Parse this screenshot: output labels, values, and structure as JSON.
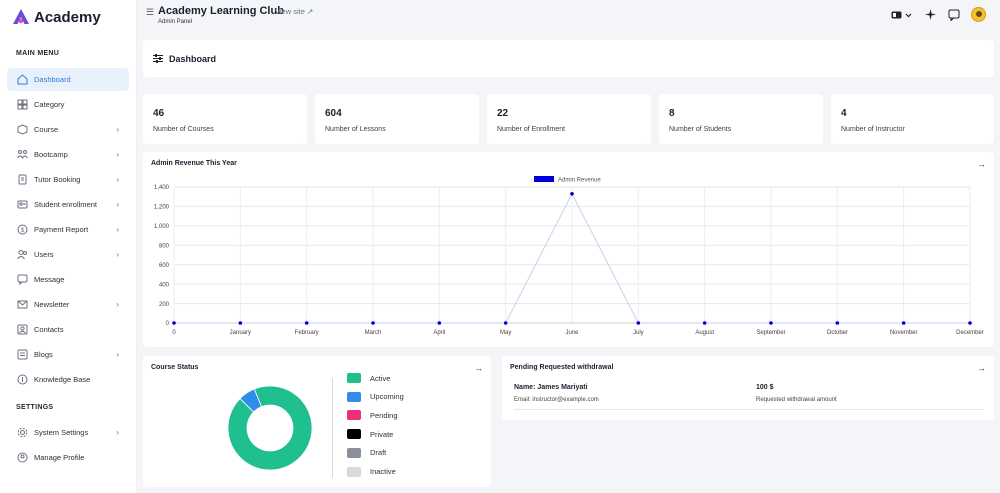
{
  "brand": {
    "name": "Academy",
    "accent": "#6c4bd8"
  },
  "header": {
    "title": "Academy Learning Club",
    "view_site": "View site",
    "subtitle": "Admin Panel"
  },
  "sidebar": {
    "main_heading": "MAIN MENU",
    "settings_heading": "SETTINGS",
    "items": [
      {
        "label": "Dashboard",
        "icon": "home-icon",
        "active": true,
        "chevron": false
      },
      {
        "label": "Category",
        "icon": "category-icon",
        "chevron": false
      },
      {
        "label": "Course",
        "icon": "course-icon",
        "chevron": true
      },
      {
        "label": "Bootcamp",
        "icon": "bootcamp-icon",
        "chevron": true
      },
      {
        "label": "Tutor Booking",
        "icon": "booking-icon",
        "chevron": true
      },
      {
        "label": "Student enrollment",
        "icon": "enrollment-icon",
        "chevron": true
      },
      {
        "label": "Payment Report",
        "icon": "payment-icon",
        "chevron": true
      },
      {
        "label": "Users",
        "icon": "users-icon",
        "chevron": true
      },
      {
        "label": "Message",
        "icon": "message-icon",
        "chevron": false
      },
      {
        "label": "Newsletter",
        "icon": "newsletter-icon",
        "chevron": true
      },
      {
        "label": "Contacts",
        "icon": "contacts-icon",
        "chevron": false
      },
      {
        "label": "Blogs",
        "icon": "blogs-icon",
        "chevron": true
      },
      {
        "label": "Knowledge Base",
        "icon": "knowledge-icon",
        "chevron": false
      }
    ],
    "settings_items": [
      {
        "label": "System Settings",
        "icon": "settings-icon",
        "chevron": true
      },
      {
        "label": "Manage Profile",
        "icon": "profile-icon",
        "chevron": false
      }
    ]
  },
  "dashboard": {
    "title": "Dashboard"
  },
  "stats": [
    {
      "value": "46",
      "label": "Number of Courses"
    },
    {
      "value": "604",
      "label": "Number of Lessons"
    },
    {
      "value": "22",
      "label": "Number of Enrollment"
    },
    {
      "value": "8",
      "label": "Number of Students"
    },
    {
      "value": "4",
      "label": "Number of Instructor"
    }
  ],
  "revenue": {
    "title": "Admin Revenue This Year",
    "arrow": "→"
  },
  "chart_data": [
    {
      "type": "line",
      "title": "",
      "series": [
        {
          "name": "Admin Revenue",
          "color": "#0000dd",
          "values": [
            0,
            0,
            0,
            0,
            0,
            0,
            1330,
            0,
            0,
            0,
            0,
            0,
            0
          ]
        }
      ],
      "categories": [
        "0",
        "January",
        "February",
        "March",
        "April",
        "May",
        "June",
        "July",
        "August",
        "September",
        "October",
        "November",
        "December"
      ],
      "ylim": [
        0,
        1400
      ],
      "yticks": [
        "0",
        "200",
        "400",
        "600",
        "800",
        "1,000",
        "1,200",
        "1,400"
      ],
      "grid": true,
      "legend": "top-center"
    },
    {
      "type": "pie",
      "title": "",
      "categories": [
        "Active",
        "Upcoming",
        "Pending",
        "Private",
        "Draft",
        "Inactive"
      ],
      "values": [
        43,
        3,
        0,
        0,
        0,
        0
      ],
      "colors": [
        "#1fbf8f",
        "#2f8ceb",
        "#ee2f7c",
        "#000000",
        "#8a9097",
        "#dadada"
      ]
    }
  ],
  "course_status": {
    "title": "Course Status",
    "arrow": "→"
  },
  "withdrawal": {
    "title": "Pending Requested withdrawal",
    "arrow": "→",
    "name": "Name: James Mariyati",
    "email": "Email: instructor@example.com",
    "amount": "100 $",
    "amount_label": "Requested withdrawal amount"
  }
}
